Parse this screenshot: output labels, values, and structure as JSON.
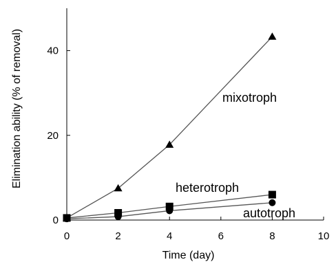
{
  "chart_data": {
    "type": "line",
    "title": "",
    "xlabel": "Time (day)",
    "ylabel": "Elimination ability (% of removal)",
    "xlim": [
      0,
      10
    ],
    "ylim": [
      0,
      50
    ],
    "x_ticks": [
      0,
      2,
      4,
      6,
      8,
      10
    ],
    "y_ticks": [
      0,
      20,
      40
    ],
    "grid": false,
    "legend": "none",
    "series": [
      {
        "name": "mixotroph",
        "marker": "triangle",
        "color": "#000000",
        "x": [
          0,
          2,
          4,
          8
        ],
        "y": [
          0.5,
          7.5,
          17.8,
          43.3
        ]
      },
      {
        "name": "heterotroph",
        "marker": "square",
        "color": "#000000",
        "x": [
          0,
          2,
          4,
          8
        ],
        "y": [
          0.5,
          1.7,
          3.2,
          6.0
        ]
      },
      {
        "name": "autotroph",
        "marker": "circle",
        "color": "#000000",
        "x": [
          0,
          2,
          4,
          8
        ],
        "y": [
          0.3,
          0.8,
          2.2,
          4.1
        ]
      }
    ]
  }
}
